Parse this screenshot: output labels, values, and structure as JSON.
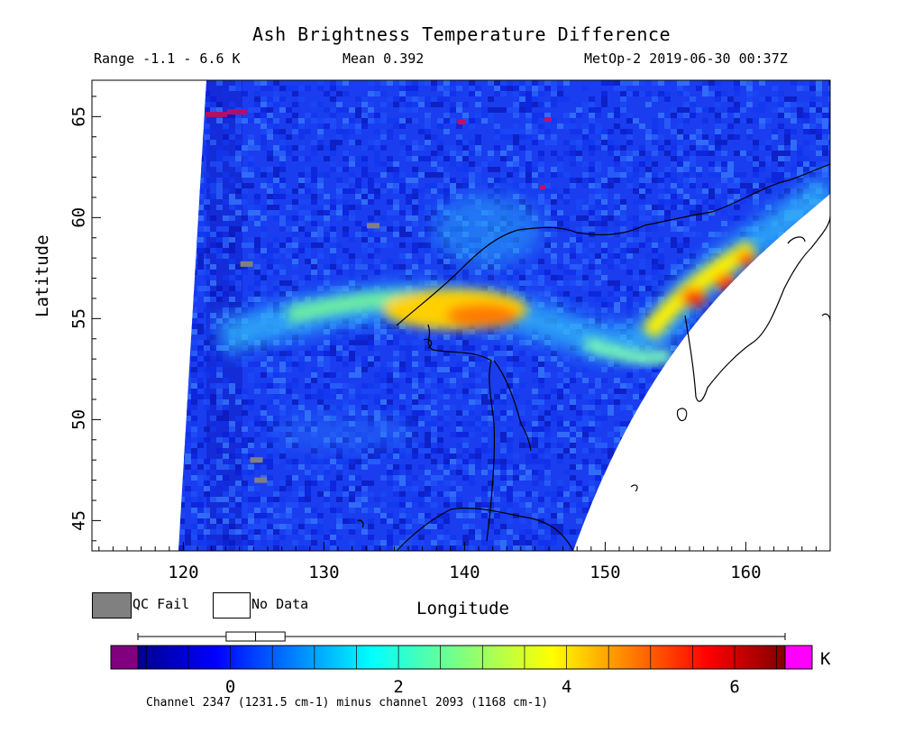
{
  "title": "Ash Brightness Temperature Difference",
  "range_label": "Range -1.1 - 6.6 K",
  "mean_label": "Mean 0.392",
  "satellite_time": "MetOp-2 2019-06-30 00:37Z",
  "axes": {
    "x_label": "Longitude",
    "y_label": "Latitude",
    "x_range": [
      113.5,
      166
    ],
    "y_range": [
      43.5,
      66.8
    ],
    "x_ticks": [
      "120",
      "130",
      "140",
      "150",
      "160"
    ],
    "y_ticks": [
      "45",
      "50",
      "55",
      "60",
      "65"
    ]
  },
  "legend": {
    "qc_fail": "QC Fail",
    "no_data": "No Data",
    "qc_color": "#808080",
    "no_data_color": "#ffffff"
  },
  "colorbar": {
    "unit": "K",
    "range": [
      -1.1,
      6.6
    ],
    "ticks": [
      "0",
      "2",
      "4",
      "6"
    ],
    "under_color": "#800080",
    "over_color": "#ff00ff",
    "boxplot": {
      "min": -1.1,
      "q1": -0.05,
      "median": 0.3,
      "q3": 0.65,
      "max": 6.6
    }
  },
  "caption": "Channel 2347 (1231.5 cm-1) minus channel 2093 (1168 cm-1)",
  "chart_data": {
    "type": "heatmap",
    "title": "Ash Brightness Temperature Difference",
    "xlabel": "Longitude",
    "ylabel": "Latitude",
    "xlim": [
      113.5,
      166
    ],
    "ylim": [
      43.5,
      66.8
    ],
    "value_range_K": [
      -1.1,
      6.6
    ],
    "mean_K": 0.392,
    "background_level_K": 0.2,
    "plume": [
      {
        "lon": 134,
        "lat": 55.0,
        "value": 2.5
      },
      {
        "lon": 138,
        "lat": 55.2,
        "value": 4.2
      },
      {
        "lon": 140,
        "lat": 55.3,
        "value": 4.8
      },
      {
        "lon": 143,
        "lat": 55.1,
        "value": 4.5
      },
      {
        "lon": 146,
        "lat": 54.2,
        "value": 2.8
      },
      {
        "lon": 150,
        "lat": 53.8,
        "value": 2.3
      },
      {
        "lon": 154,
        "lat": 55.5,
        "value": 3.5
      },
      {
        "lon": 156,
        "lat": 56.0,
        "value": 5.8
      },
      {
        "lon": 158,
        "lat": 56.8,
        "value": 5.5
      },
      {
        "lon": 160,
        "lat": 58.0,
        "value": 5.2
      }
    ],
    "qc_fail_points": [
      {
        "lon": 133.5,
        "lat": 59.6
      },
      {
        "lon": 124.5,
        "lat": 57.7
      },
      {
        "lon": 125.2,
        "lat": 48.0
      },
      {
        "lon": 125.5,
        "lat": 47.0
      }
    ]
  }
}
